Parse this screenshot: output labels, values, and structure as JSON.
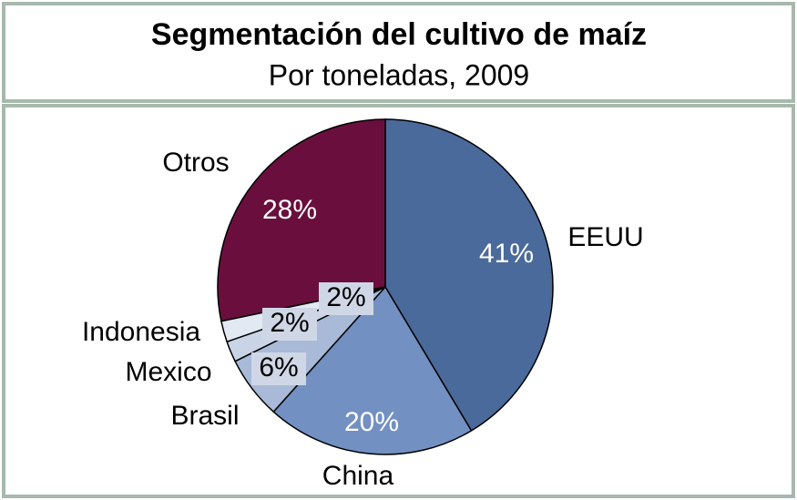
{
  "chart_data": {
    "type": "pie",
    "title": "Segmentación del cultivo de maíz",
    "subtitle": "Por toneladas, 2009",
    "categories": [
      "EEUU",
      "China",
      "Brasil",
      "Mexico",
      "Indonesia",
      "Otros"
    ],
    "values": [
      41,
      20,
      6,
      2,
      2,
      28
    ],
    "value_labels": [
      "41%",
      "20%",
      "6%",
      "2%",
      "2%",
      "28%"
    ],
    "colors": [
      "#4a6a9b",
      "#7290c2",
      "#a9bad8",
      "#c9d4e7",
      "#e3e9f3",
      "#6a0f3d"
    ]
  }
}
